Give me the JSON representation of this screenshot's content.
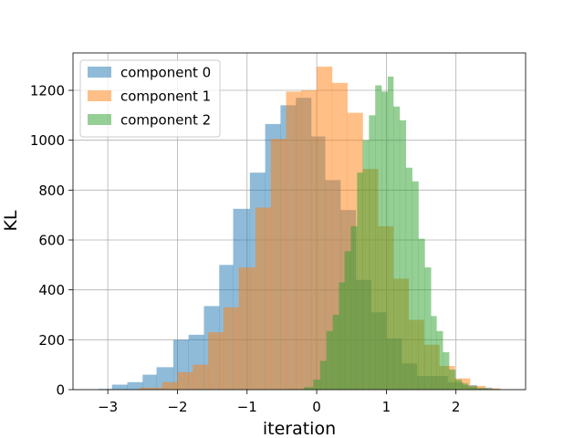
{
  "chart_data": {
    "type": "histogram",
    "title": "",
    "xlabel": "iteration",
    "ylabel": "KL",
    "xlim": [
      -3.5,
      3.0
    ],
    "ylim": [
      0,
      1350
    ],
    "x_ticks": [
      -3,
      -2,
      -1,
      0,
      1,
      2
    ],
    "x_tick_labels": [
      "−3",
      "−2",
      "−1",
      "0",
      "1",
      "2"
    ],
    "y_ticks": [
      0,
      200,
      400,
      600,
      800,
      1000,
      1200
    ],
    "y_tick_labels": [
      "0",
      "200",
      "400",
      "600",
      "800",
      "1000",
      "1200"
    ],
    "grid": true,
    "legend_position": "top-left",
    "series": [
      {
        "name": "component 0",
        "color": "#1f77b4",
        "opacity": 0.5,
        "bins": [
          [
            -3.13,
            -2.94,
            3
          ],
          [
            -2.94,
            -2.72,
            20
          ],
          [
            -2.72,
            -2.5,
            30
          ],
          [
            -2.5,
            -2.3,
            60
          ],
          [
            -2.3,
            -2.06,
            90
          ],
          [
            -2.06,
            -1.84,
            200
          ],
          [
            -1.84,
            -1.62,
            220
          ],
          [
            -1.62,
            -1.4,
            335
          ],
          [
            -1.4,
            -1.2,
            500
          ],
          [
            -1.2,
            -0.96,
            725
          ],
          [
            -0.96,
            -0.74,
            870
          ],
          [
            -0.74,
            -0.52,
            1065
          ],
          [
            -0.52,
            -0.3,
            1140
          ],
          [
            -0.3,
            -0.08,
            1170
          ],
          [
            -0.08,
            0.12,
            1015
          ],
          [
            0.12,
            0.34,
            840
          ],
          [
            0.34,
            0.56,
            720
          ],
          [
            0.56,
            0.78,
            440
          ],
          [
            0.78,
            1.0,
            310
          ],
          [
            1.0,
            1.22,
            205
          ],
          [
            1.22,
            1.44,
            105
          ],
          [
            1.44,
            1.66,
            55
          ],
          [
            1.66,
            1.88,
            55
          ],
          [
            1.88,
            2.1,
            30
          ],
          [
            2.1,
            2.3,
            18
          ],
          [
            2.3,
            2.52,
            8
          ],
          [
            2.52,
            2.62,
            3
          ]
        ]
      },
      {
        "name": "component 1",
        "color": "#ff7f0e",
        "opacity": 0.5,
        "bins": [
          [
            -2.55,
            -2.22,
            8
          ],
          [
            -2.22,
            -2.0,
            30
          ],
          [
            -2.0,
            -1.78,
            70
          ],
          [
            -1.78,
            -1.56,
            100
          ],
          [
            -1.56,
            -1.34,
            230
          ],
          [
            -1.34,
            -1.12,
            330
          ],
          [
            -1.12,
            -0.88,
            490
          ],
          [
            -0.88,
            -0.66,
            730
          ],
          [
            -0.66,
            -0.44,
            1005
          ],
          [
            -0.44,
            -0.22,
            1195
          ],
          [
            -0.22,
            -0.0,
            1200
          ],
          [
            -0.0,
            0.22,
            1295
          ],
          [
            0.22,
            0.44,
            1230
          ],
          [
            0.44,
            0.66,
            1110
          ],
          [
            0.66,
            0.88,
            885
          ],
          [
            0.88,
            1.1,
            655
          ],
          [
            1.1,
            1.32,
            445
          ],
          [
            1.32,
            1.54,
            280
          ],
          [
            1.54,
            1.76,
            180
          ],
          [
            1.76,
            1.98,
            95
          ],
          [
            1.98,
            2.2,
            45
          ],
          [
            2.2,
            2.42,
            15
          ],
          [
            2.42,
            2.64,
            5
          ]
        ]
      },
      {
        "name": "component 2",
        "color": "#2ca02c",
        "opacity": 0.5,
        "bins": [
          [
            -0.44,
            -0.18,
            2
          ],
          [
            -0.18,
            -0.05,
            10
          ],
          [
            -0.05,
            0.05,
            40
          ],
          [
            0.05,
            0.14,
            115
          ],
          [
            0.14,
            0.23,
            235
          ],
          [
            0.23,
            0.32,
            300
          ],
          [
            0.32,
            0.4,
            430
          ],
          [
            0.4,
            0.49,
            555
          ],
          [
            0.49,
            0.58,
            655
          ],
          [
            0.58,
            0.66,
            870
          ],
          [
            0.66,
            0.75,
            1000
          ],
          [
            0.75,
            0.84,
            1100
          ],
          [
            0.84,
            0.93,
            1220
          ],
          [
            0.93,
            1.02,
            1195
          ],
          [
            1.02,
            1.1,
            1255
          ],
          [
            1.1,
            1.19,
            1135
          ],
          [
            1.19,
            1.28,
            1080
          ],
          [
            1.28,
            1.37,
            890
          ],
          [
            1.37,
            1.46,
            835
          ],
          [
            1.46,
            1.55,
            605
          ],
          [
            1.55,
            1.64,
            490
          ],
          [
            1.64,
            1.72,
            295
          ],
          [
            1.72,
            1.81,
            235
          ],
          [
            1.81,
            1.9,
            150
          ],
          [
            1.9,
            1.99,
            80
          ],
          [
            1.99,
            2.08,
            40
          ],
          [
            2.08,
            2.17,
            25
          ],
          [
            2.17,
            2.3,
            12
          ],
          [
            2.3,
            2.45,
            5
          ],
          [
            2.45,
            2.62,
            2
          ]
        ]
      }
    ]
  }
}
